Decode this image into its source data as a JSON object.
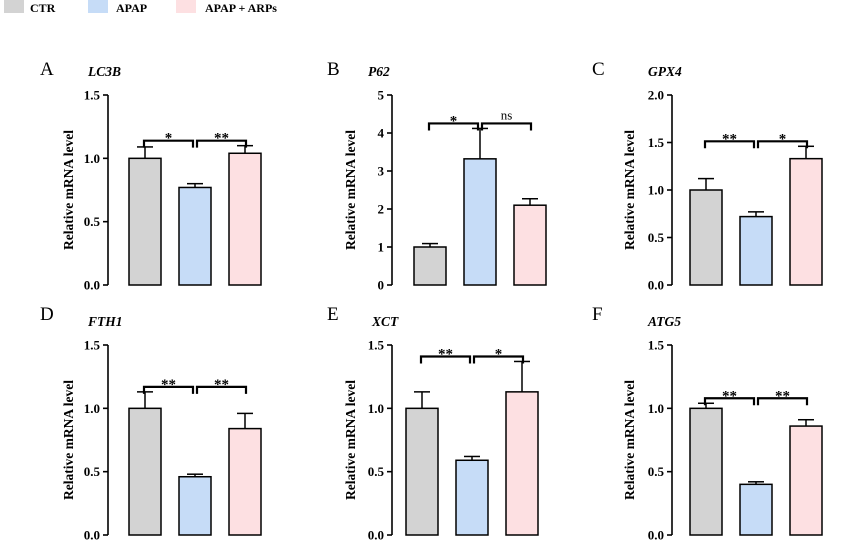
{
  "legend": [
    {
      "label": "CTR",
      "color": "#d3d3d3"
    },
    {
      "label": "APAP",
      "color": "#c6dcf7"
    },
    {
      "label": "APAP + ARPs",
      "color": "#fde0e2"
    }
  ],
  "chart_data": [
    {
      "type": "bar",
      "panel": "A",
      "title": "LC3B",
      "ylabel": "Relative mRNA level",
      "categories": [
        "CTR",
        "APAP",
        "APAP + ARPs"
      ],
      "values": [
        1.0,
        0.77,
        1.04
      ],
      "errors": [
        0.09,
        0.03,
        0.06
      ],
      "ylim": [
        0,
        1.5
      ],
      "yticks": [
        "0.0",
        "0.5",
        "1.0",
        "1.5"
      ],
      "tick_values": [
        0,
        0.5,
        1.0,
        1.5
      ],
      "comparisons": [
        {
          "from": 0,
          "to": 1,
          "label": "*"
        },
        {
          "from": 1,
          "to": 2,
          "label": "**"
        }
      ]
    },
    {
      "type": "bar",
      "panel": "B",
      "title": "P62",
      "ylabel": "Relative mRNA level",
      "categories": [
        "CTR",
        "APAP",
        "APAP + ARPs"
      ],
      "values": [
        1.0,
        3.32,
        2.1
      ],
      "errors": [
        0.09,
        0.8,
        0.17
      ],
      "ylim": [
        0,
        5
      ],
      "yticks": [
        "0",
        "1",
        "2",
        "3",
        "4",
        "5"
      ],
      "tick_values": [
        0,
        1,
        2,
        3,
        4,
        5
      ],
      "comparisons": [
        {
          "from": 0,
          "to": 1,
          "label": "*"
        },
        {
          "from": 1,
          "to": 2,
          "label": "ns"
        }
      ]
    },
    {
      "type": "bar",
      "panel": "C",
      "title": "GPX4",
      "ylabel": "Relative mRNA level",
      "categories": [
        "CTR",
        "APAP",
        "APAP + ARPs"
      ],
      "values": [
        1.0,
        0.72,
        1.33
      ],
      "errors": [
        0.12,
        0.05,
        0.13
      ],
      "ylim": [
        0,
        2.0
      ],
      "yticks": [
        "0.0",
        "0.5",
        "1.0",
        "1.5",
        "2.0"
      ],
      "tick_values": [
        0,
        0.5,
        1.0,
        1.5,
        2.0
      ],
      "comparisons": [
        {
          "from": 0,
          "to": 1,
          "label": "**"
        },
        {
          "from": 1,
          "to": 2,
          "label": "*"
        }
      ]
    },
    {
      "type": "bar",
      "panel": "D",
      "title": "FTH1",
      "ylabel": "Relative mRNA level",
      "categories": [
        "CTR",
        "APAP",
        "APAP + ARPs"
      ],
      "values": [
        1.0,
        0.46,
        0.84
      ],
      "errors": [
        0.13,
        0.02,
        0.12
      ],
      "ylim": [
        0,
        1.5
      ],
      "yticks": [
        "0.0",
        "0.5",
        "1.0",
        "1.5"
      ],
      "tick_values": [
        0,
        0.5,
        1.0,
        1.5
      ],
      "comparisons": [
        {
          "from": 0,
          "to": 1,
          "label": "**"
        },
        {
          "from": 1,
          "to": 2,
          "label": "**"
        }
      ]
    },
    {
      "type": "bar",
      "panel": "E",
      "title": "XCT",
      "ylabel": "Relative mRNA level",
      "categories": [
        "CTR",
        "APAP",
        "APAP + ARPs"
      ],
      "values": [
        1.0,
        0.59,
        1.13
      ],
      "errors": [
        0.13,
        0.03,
        0.24
      ],
      "ylim": [
        0,
        1.5
      ],
      "yticks": [
        "0.0",
        "0.5",
        "1.0",
        "1.5"
      ],
      "tick_values": [
        0,
        0.5,
        1.0,
        1.5
      ],
      "comparisons": [
        {
          "from": 0,
          "to": 1,
          "label": "**"
        },
        {
          "from": 1,
          "to": 2,
          "label": "*"
        }
      ]
    },
    {
      "type": "bar",
      "panel": "F",
      "title": "ATG5",
      "ylabel": "Relative mRNA level",
      "categories": [
        "CTR",
        "APAP",
        "APAP + ARPs"
      ],
      "values": [
        1.0,
        0.4,
        0.86
      ],
      "errors": [
        0.04,
        0.02,
        0.05
      ],
      "ylim": [
        0,
        1.5
      ],
      "yticks": [
        "0.0",
        "0.5",
        "1.0",
        "1.5"
      ],
      "tick_values": [
        0,
        0.5,
        1.0,
        1.5
      ],
      "comparisons": [
        {
          "from": 0,
          "to": 1,
          "label": "**"
        },
        {
          "from": 1,
          "to": 2,
          "label": "**"
        }
      ]
    }
  ]
}
